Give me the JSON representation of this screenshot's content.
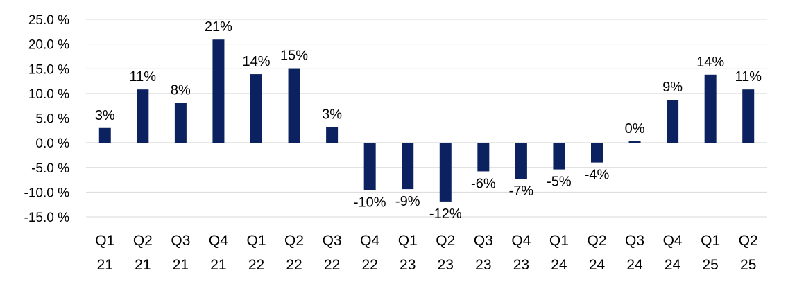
{
  "chart_data": {
    "type": "bar",
    "categories": [
      [
        "Q1",
        "21"
      ],
      [
        "Q2",
        "21"
      ],
      [
        "Q3",
        "21"
      ],
      [
        "Q4",
        "21"
      ],
      [
        "Q1",
        "22"
      ],
      [
        "Q2",
        "22"
      ],
      [
        "Q3",
        "22"
      ],
      [
        "Q4",
        "22"
      ],
      [
        "Q1",
        "23"
      ],
      [
        "Q2",
        "23"
      ],
      [
        "Q3",
        "23"
      ],
      [
        "Q4",
        "23"
      ],
      [
        "Q1",
        "24"
      ],
      [
        "Q2",
        "24"
      ],
      [
        "Q3",
        "24"
      ],
      [
        "Q4",
        "24"
      ],
      [
        "Q1",
        "25"
      ],
      [
        "Q2",
        "25"
      ]
    ],
    "values": [
      3.0,
      10.8,
      8.1,
      20.9,
      13.9,
      15.1,
      3.2,
      -9.6,
      -9.4,
      -11.9,
      -5.8,
      -7.3,
      -5.4,
      -4.0,
      0.3,
      8.7,
      13.8,
      10.8
    ],
    "data_labels": [
      "3%",
      "11%",
      "8%",
      "21%",
      "14%",
      "15%",
      "3%",
      "-10%",
      "-9%",
      "-12%",
      "-6%",
      "-7%",
      "-5%",
      "-4%",
      "0%",
      "9%",
      "14%",
      "11%"
    ],
    "y_ticks": [
      25,
      20,
      15,
      10,
      5,
      0,
      -5,
      -10,
      -15
    ],
    "y_tick_labels": [
      "25.0 %",
      "20.0 %",
      "15.0 %",
      "10.0 %",
      "5.0 %",
      "0.0 %",
      "-5.0 %",
      "-10.0 %",
      "-15.0 %"
    ],
    "ylim": [
      -15,
      25
    ],
    "grid": true,
    "legend": "none",
    "title": "",
    "xlabel": "",
    "ylabel": "",
    "colors": {
      "bar": "#0c2260",
      "grid": "#d9d9d9"
    }
  }
}
